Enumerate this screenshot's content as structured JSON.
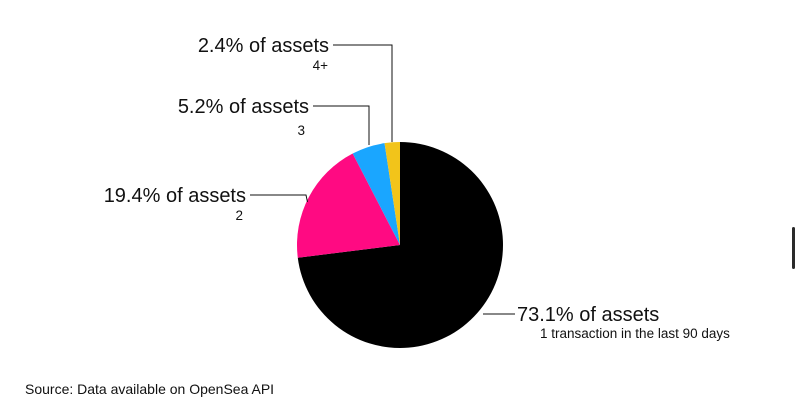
{
  "chart_data": {
    "type": "pie",
    "slices": [
      {
        "value": 73.1,
        "pct_label": "73.1% of assets",
        "category": "1 transaction in the last 90 days",
        "color": "#000000"
      },
      {
        "value": 19.4,
        "pct_label": "19.4% of assets",
        "category": "2",
        "color": "#ff0a82"
      },
      {
        "value": 5.2,
        "pct_label": "5.2% of assets",
        "category": "3",
        "color": "#1aa6ff"
      },
      {
        "value": 2.4,
        "pct_label": "2.4% of assets",
        "category": "4+",
        "color": "#f2c41a"
      }
    ],
    "start_direction": "12 o'clock",
    "order": "clockwise",
    "legend": "none"
  },
  "source": "Source: Data available on OpenSea API"
}
